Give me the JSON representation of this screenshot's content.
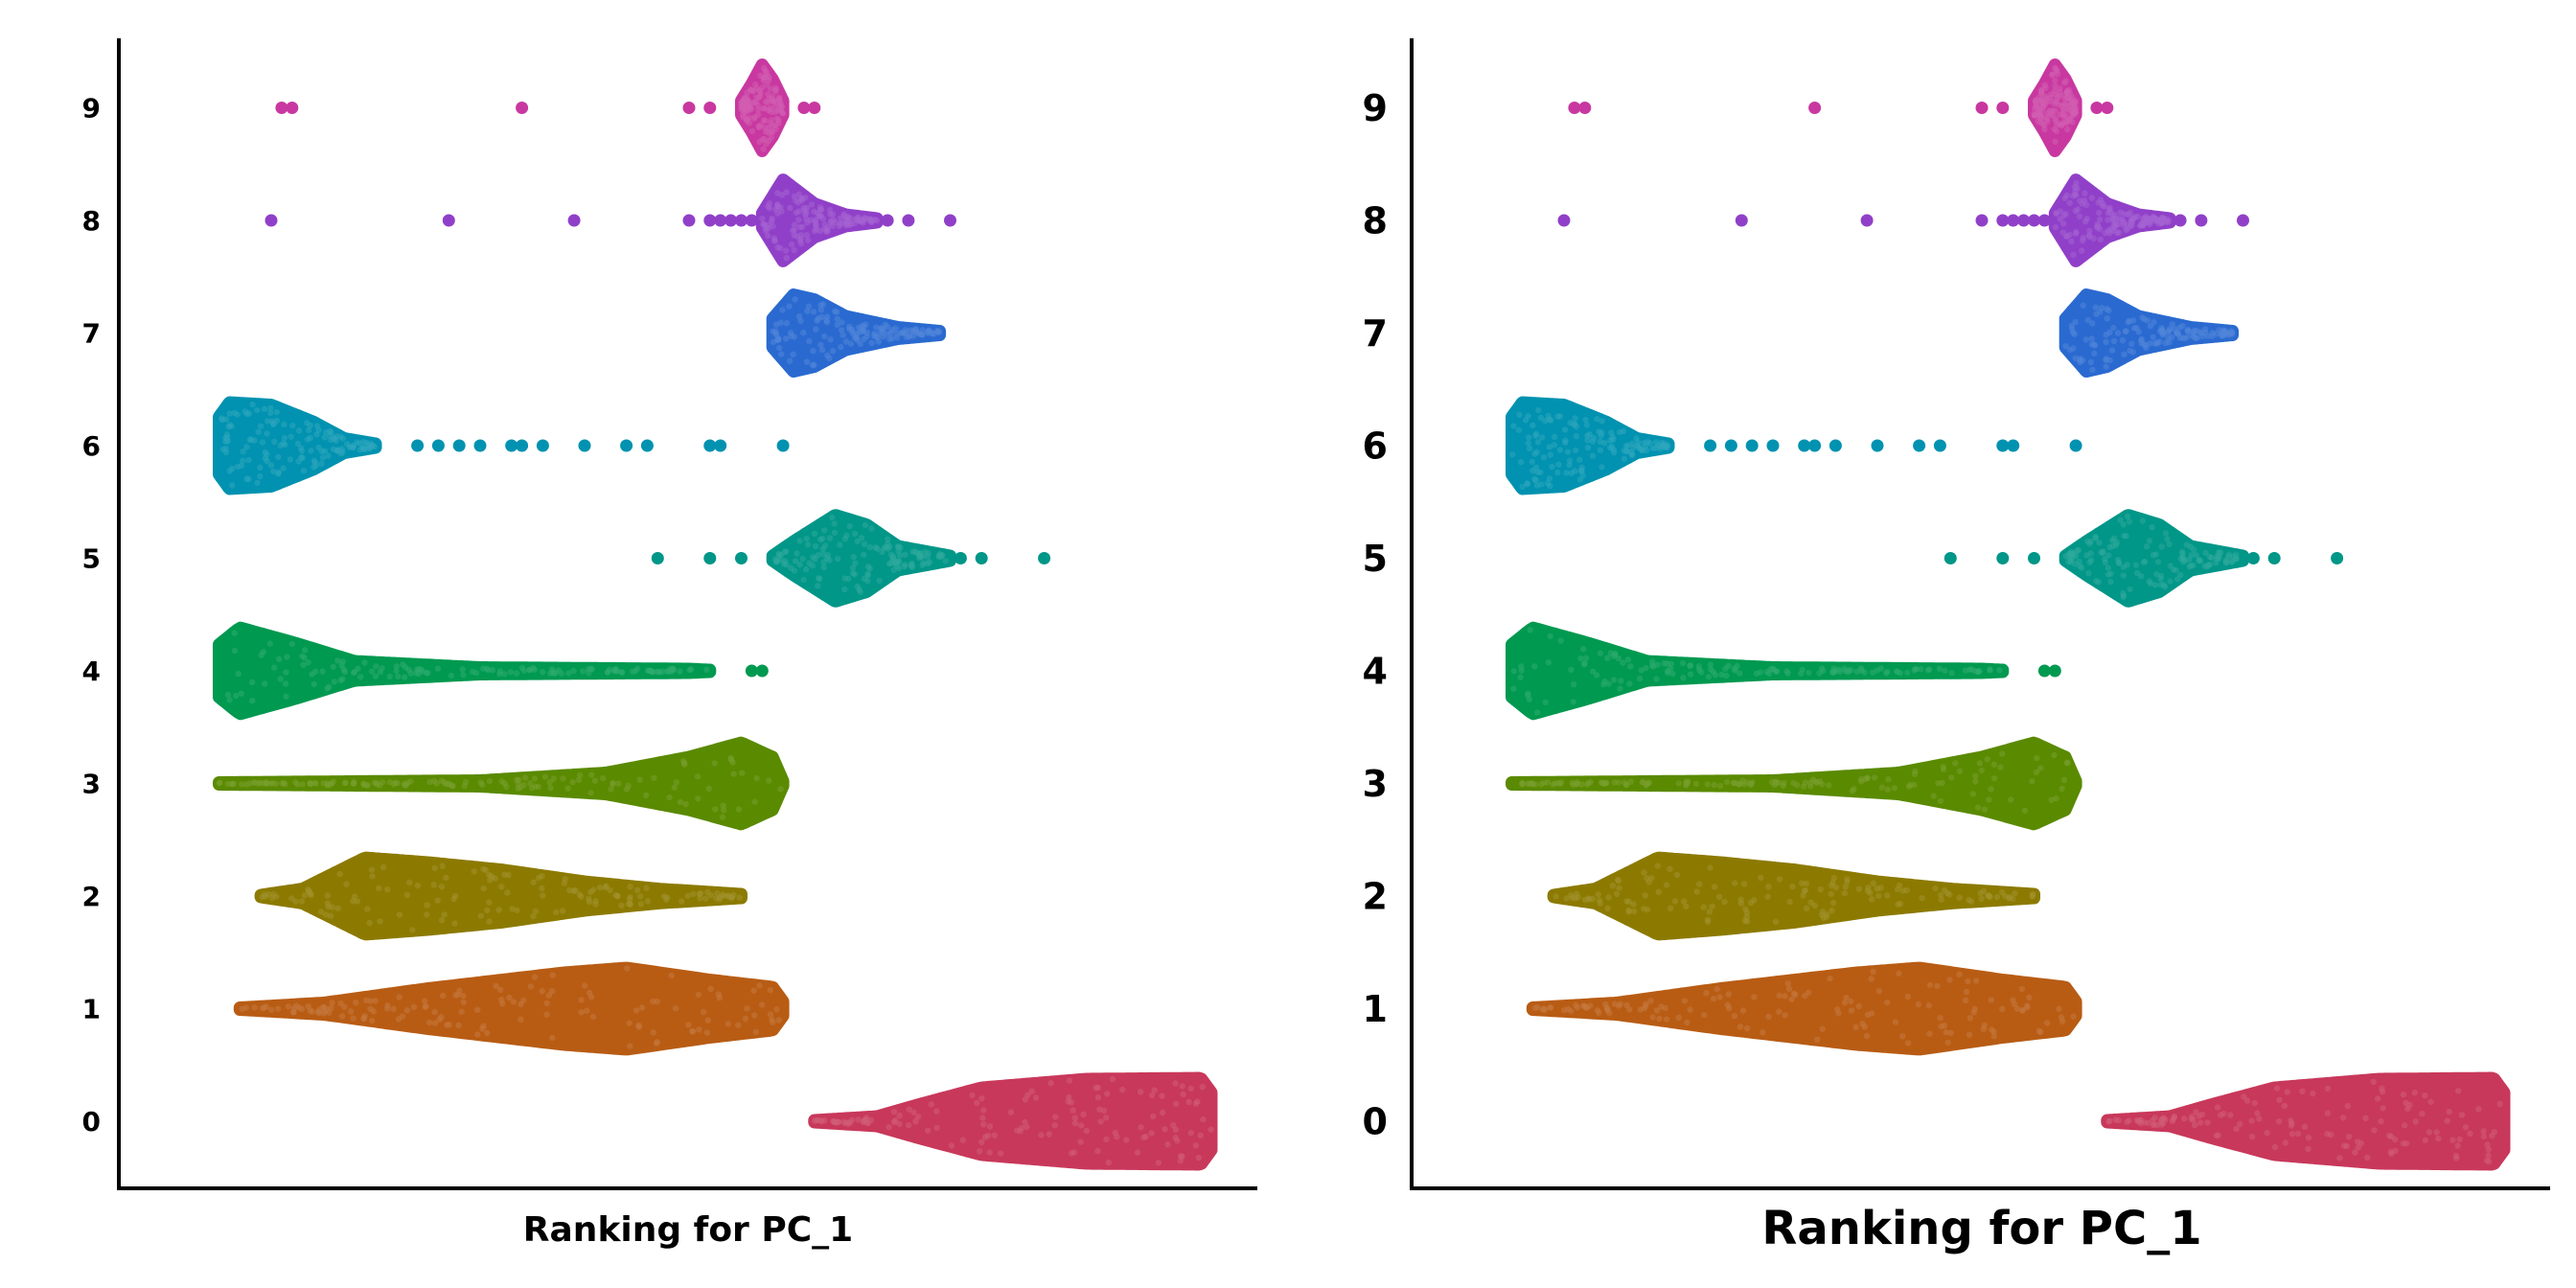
{
  "chart_data": [
    {
      "type": "scatter",
      "subtype": "beeswarm",
      "title": "",
      "xlabel": "Ranking for PC_1",
      "ylabel": "",
      "categories": [
        "0",
        "1",
        "2",
        "3",
        "4",
        "5",
        "6",
        "7",
        "8",
        "9"
      ],
      "xlim": [
        0,
        1
      ],
      "grid": false,
      "legend": "none",
      "series": [
        {
          "cluster": "0",
          "color": "#C8385A",
          "min": 0.62,
          "max": 1.0,
          "knots": [
            [
              0.62,
              0.02
            ],
            [
              0.68,
              0.1
            ],
            [
              0.72,
              0.35
            ],
            [
              0.78,
              0.7
            ],
            [
              0.88,
              0.88
            ],
            [
              0.99,
              0.9
            ],
            [
              1.0,
              0.6
            ]
          ],
          "outliers": []
        },
        {
          "cluster": "1",
          "color": "#B85C14",
          "min": 0.07,
          "max": 0.59,
          "knots": [
            [
              0.07,
              0.02
            ],
            [
              0.15,
              0.12
            ],
            [
              0.25,
              0.42
            ],
            [
              0.38,
              0.75
            ],
            [
              0.44,
              0.85
            ],
            [
              0.52,
              0.6
            ],
            [
              0.58,
              0.45
            ],
            [
              0.59,
              0.15
            ]
          ],
          "outliers": []
        },
        {
          "cluster": "2",
          "color": "#8C7A00",
          "min": 0.09,
          "max": 0.55,
          "knots": [
            [
              0.09,
              0.02
            ],
            [
              0.13,
              0.15
            ],
            [
              0.19,
              0.8
            ],
            [
              0.25,
              0.7
            ],
            [
              0.32,
              0.55
            ],
            [
              0.4,
              0.3
            ],
            [
              0.47,
              0.15
            ],
            [
              0.55,
              0.04
            ]
          ],
          "outliers": []
        },
        {
          "cluster": "3",
          "color": "#5A8A00",
          "min": 0.05,
          "max": 0.59,
          "knots": [
            [
              0.05,
              0.02
            ],
            [
              0.3,
              0.06
            ],
            [
              0.42,
              0.22
            ],
            [
              0.5,
              0.55
            ],
            [
              0.55,
              0.85
            ],
            [
              0.58,
              0.55
            ],
            [
              0.59,
              0.05
            ]
          ],
          "outliers": []
        },
        {
          "cluster": "4",
          "color": "#009950",
          "min": 0.05,
          "max": 0.52,
          "knots": [
            [
              0.05,
              0.55
            ],
            [
              0.07,
              0.9
            ],
            [
              0.12,
              0.6
            ],
            [
              0.18,
              0.2
            ],
            [
              0.3,
              0.07
            ],
            [
              0.5,
              0.04
            ],
            [
              0.52,
              0.02
            ]
          ],
          "outliers": [
            0.56,
            0.57
          ]
        },
        {
          "cluster": "5",
          "color": "#009688",
          "min": 0.58,
          "max": 0.75,
          "knots": [
            [
              0.58,
              0.05
            ],
            [
              0.6,
              0.35
            ],
            [
              0.64,
              0.9
            ],
            [
              0.67,
              0.7
            ],
            [
              0.7,
              0.25
            ],
            [
              0.75,
              0.05
            ]
          ],
          "outliers": [
            0.47,
            0.52,
            0.55,
            0.76,
            0.78,
            0.84
          ]
        },
        {
          "cluster": "6",
          "color": "#0092B0",
          "min": 0.05,
          "max": 0.2,
          "knots": [
            [
              0.05,
              0.6
            ],
            [
              0.06,
              0.9
            ],
            [
              0.1,
              0.85
            ],
            [
              0.14,
              0.5
            ],
            [
              0.17,
              0.15
            ],
            [
              0.2,
              0.04
            ]
          ],
          "outliers": [
            0.24,
            0.26,
            0.28,
            0.3,
            0.33,
            0.34,
            0.36,
            0.4,
            0.44,
            0.46,
            0.52,
            0.53,
            0.59
          ]
        },
        {
          "cluster": "7",
          "color": "#2A6AD0",
          "min": 0.58,
          "max": 0.74,
          "knots": [
            [
              0.58,
              0.3
            ],
            [
              0.6,
              0.8
            ],
            [
              0.62,
              0.7
            ],
            [
              0.65,
              0.35
            ],
            [
              0.7,
              0.12
            ],
            [
              0.74,
              0.04
            ]
          ],
          "outliers": []
        },
        {
          "cluster": "8",
          "color": "#9040C8",
          "min": 0.57,
          "max": 0.68,
          "knots": [
            [
              0.57,
              0.15
            ],
            [
              0.59,
              0.85
            ],
            [
              0.62,
              0.35
            ],
            [
              0.65,
              0.12
            ],
            [
              0.68,
              0.04
            ]
          ],
          "outliers": [
            0.1,
            0.27,
            0.39,
            0.5,
            0.52,
            0.53,
            0.54,
            0.55,
            0.56,
            0.69,
            0.71,
            0.75
          ]
        },
        {
          "cluster": "9",
          "color": "#C838A0",
          "min": 0.55,
          "max": 0.59,
          "knots": [
            [
              0.55,
              0.15
            ],
            [
              0.56,
              0.5
            ],
            [
              0.57,
              0.9
            ],
            [
              0.58,
              0.6
            ],
            [
              0.59,
              0.15
            ]
          ],
          "outliers": [
            0.11,
            0.12,
            0.34,
            0.5,
            0.52,
            0.61,
            0.62
          ]
        }
      ]
    },
    {
      "type": "scatter",
      "subtype": "beeswarm",
      "title": "",
      "xlabel": "Ranking for PC_1",
      "ylabel": "",
      "categories": [
        "0",
        "1",
        "2",
        "3",
        "4",
        "5",
        "6",
        "7",
        "8",
        "9"
      ],
      "xlim": [
        0,
        1
      ],
      "grid": false,
      "legend": "none",
      "same_data_as_panel": 1
    }
  ]
}
